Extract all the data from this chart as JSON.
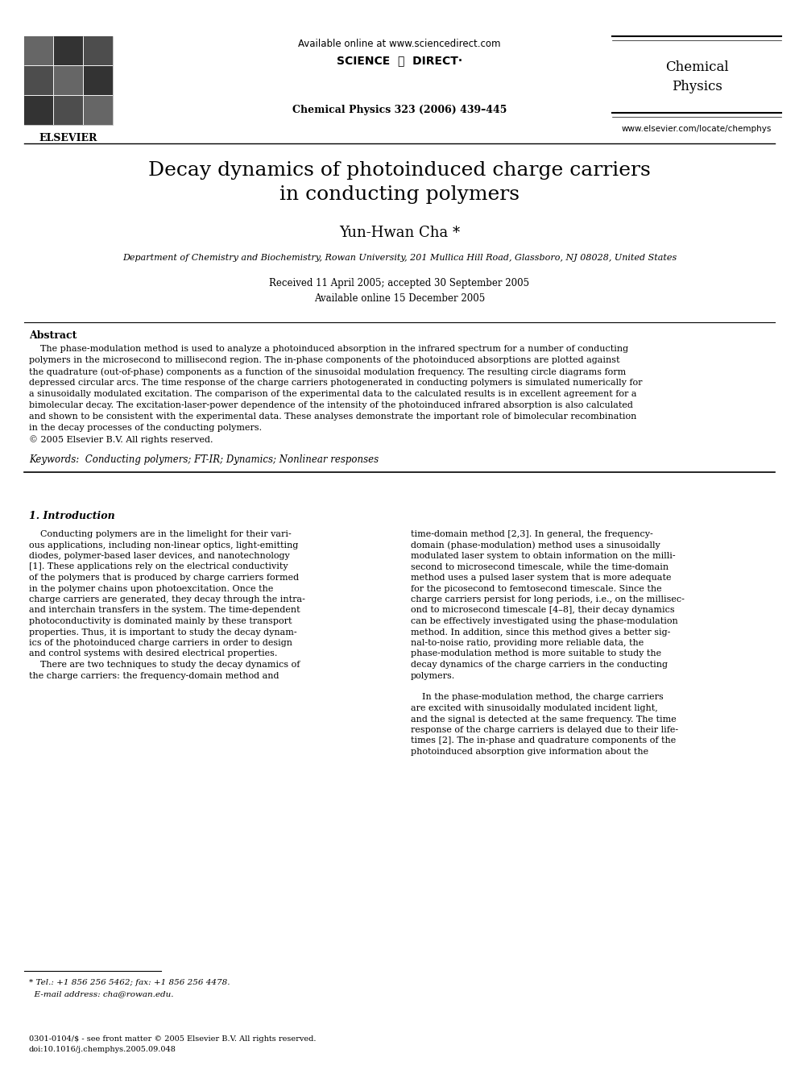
{
  "bg_color": "#ffffff",
  "header": {
    "available_online": "Available online at www.sciencedirect.com",
    "journal_name": "Chemical\nPhysics",
    "journal_citation": "Chemical Physics 323 (2006) 439–445",
    "website": "www.elsevier.com/locate/chemphys",
    "sciencedirect_text": "SCIENCE ⓐ DIRECT·"
  },
  "title": "Decay dynamics of photoinduced charge carriers\nin conducting polymers",
  "author": "Yun-Hwan Cha *",
  "affiliation": "Department of Chemistry and Biochemistry, Rowan University, 201 Mullica Hill Road, Glassboro, NJ 08028, United States",
  "dates": "Received 11 April 2005; accepted 30 September 2005\nAvailable online 15 December 2005",
  "abstract_label": "Abstract",
  "abstract_text": "The phase-modulation method is used to analyze a photoinduced absorption in the infrared spectrum for a number of conducting polymers in the microsecond to millisecond region. The in-phase components of the photoinduced absorptions are plotted against the quadrature (out-of-phase) components as a function of the sinusoidal modulation frequency. The resulting circle diagrams form depressed circular arcs. The time response of the charge carriers photogenerated in conducting polymers is simulated numerically for a sinusoidally modulated excitation. The comparison of the experimental data to the calculated results is in excellent agreement for a bimolecular decay. The excitation-laser-power dependence of the intensity of the photoinduced infrared absorption is also calculated and shown to be consistent with the experimental data. These analyses demonstrate the important role of bimolecular recombination in the decay processes of the conducting polymers.\n© 2005 Elsevier B.V. All rights reserved.",
  "keywords": "Keywords:  Conducting polymers; FT-IR; Dynamics; Nonlinear responses",
  "section1_label": "1. Introduction",
  "section1_col1": "Conducting polymers are in the limelight for their various applications, including non-linear optics, light-emitting diodes, polymer-based laser devices, and nanotechnology [1]. These applications rely on the electrical conductivity of the polymers that is produced by charge carriers formed in the polymer chains upon photoexcitation. Once the charge carriers are generated, they decay through the intra- and interchain transfers in the system. The time-dependent photoconductivity is dominated mainly by these transport properties. Thus, it is important to study the decay dynamics of the photoinduced charge carriers in order to design and control systems with desired electrical properties.\n    There are two techniques to study the decay dynamics of the charge carriers: the frequency-domain method and",
  "section1_col2": "time-domain method [2,3]. In general, the frequency-domain (phase-modulation) method uses a sinusoidally modulated laser system to obtain information on the millisecond to microsecond timescale, while the time-domain method uses a pulsed laser system that is more adequate for the picosecond to femtosecond timescale. Since the charge carriers persist for long periods, i.e., on the millisecond to microsecond timescale [4–8], their decay dynamics can be effectively investigated using the phase-modulation method. In addition, since this method gives a better signal-to-noise ratio, providing more reliable data, the phase-modulation method is more suitable to study the decay dynamics of the charge carriers in the conducting polymers.\n    In the phase-modulation method, the charge carriers are excited with sinusoidally modulated incident light, and the signal is detected at the same frequency. The time response of the charge carriers is delayed due to their lifetimes [2]. The in-phase and quadrature components of the photoinduced absorption give information about the",
  "footnote": "* Tel.: +1 856 256 5462; fax: +1 856 256 4478.\n  E-mail address: cha@rowan.edu.",
  "footer": "0301-0104/$ - see front matter © 2005 Elsevier B.V. All rights reserved.\ndoi:10.1016/j.chemphys.2005.09.048"
}
